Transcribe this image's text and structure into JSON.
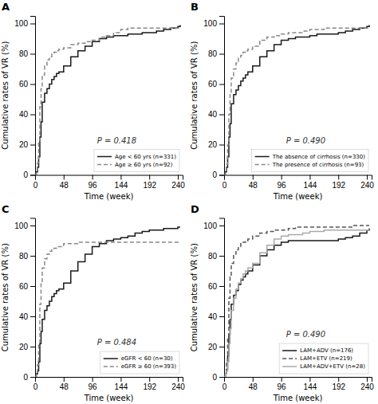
{
  "chart_data": [
    {
      "type": "step",
      "title": "A",
      "annotations": [
        "P = 0.418"
      ],
      "xlabel": "Time (week)",
      "ylabel": "Cumulative rates of VR (%)",
      "xlim": [
        0,
        248
      ],
      "ylim": [
        0,
        105
      ],
      "xticks": [
        0,
        48,
        96,
        144,
        192,
        240
      ],
      "yticks": [
        0,
        20,
        40,
        60,
        80,
        100
      ],
      "grid": false,
      "legend": "lower right",
      "series": [
        {
          "name": "Age < 60 yrs (n=331)",
          "color": "#1a1a1a",
          "line_style": "solid",
          "x": [
            0,
            2,
            4,
            6,
            8,
            10,
            12,
            16,
            20,
            24,
            28,
            32,
            36,
            40,
            48,
            60,
            72,
            84,
            96,
            108,
            120,
            132,
            144,
            156,
            168,
            180,
            192,
            204,
            216,
            228,
            240,
            244
          ],
          "values": [
            0,
            2,
            5,
            12,
            25,
            35,
            48,
            54,
            57,
            60,
            63,
            65,
            67,
            68,
            72,
            78,
            82,
            85,
            88,
            90,
            91,
            92,
            92,
            93,
            93,
            94,
            94,
            95,
            96,
            97,
            98,
            99
          ]
        },
        {
          "name": "Age ≥ 60 yrs (n=92)",
          "color": "#888888",
          "line_style": "dashed",
          "x": [
            0,
            2,
            4,
            6,
            8,
            10,
            12,
            16,
            20,
            24,
            28,
            32,
            36,
            40,
            48,
            60,
            72,
            84,
            96,
            108,
            120,
            132,
            144,
            156,
            168,
            180,
            192,
            204,
            240,
            244
          ],
          "values": [
            0,
            3,
            8,
            22,
            45,
            57,
            66,
            72,
            76,
            78,
            80,
            81,
            82,
            83,
            84,
            86,
            87,
            88,
            89,
            91,
            92,
            94,
            96,
            97,
            97,
            97,
            97,
            97,
            97,
            97
          ]
        }
      ]
    },
    {
      "type": "step",
      "title": "B",
      "annotations": [
        "P = 0.490"
      ],
      "xlabel": "Time (week)",
      "ylabel": "Cumulative rates of VR (%)",
      "xlim": [
        0,
        248
      ],
      "ylim": [
        0,
        105
      ],
      "xticks": [
        0,
        48,
        96,
        144,
        192,
        240
      ],
      "yticks": [
        0,
        20,
        40,
        60,
        80,
        100
      ],
      "grid": false,
      "legend": "lower right",
      "series": [
        {
          "name": "The absence of cirrhosis (n=330)",
          "color": "#1a1a1a",
          "line_style": "solid",
          "x": [
            0,
            2,
            4,
            6,
            8,
            10,
            12,
            16,
            20,
            24,
            28,
            32,
            36,
            40,
            48,
            60,
            72,
            84,
            96,
            108,
            120,
            132,
            144,
            156,
            168,
            180,
            192,
            204,
            216,
            228,
            240,
            244
          ],
          "values": [
            0,
            2,
            5,
            12,
            25,
            34,
            47,
            53,
            56,
            59,
            62,
            64,
            66,
            68,
            72,
            78,
            82,
            86,
            89,
            90,
            91,
            91,
            92,
            93,
            93,
            93,
            94,
            95,
            96,
            97,
            98,
            99
          ]
        },
        {
          "name": "The presence of cirrhosis (n=93)",
          "color": "#888888",
          "line_style": "dashed",
          "x": [
            0,
            2,
            4,
            6,
            8,
            10,
            12,
            16,
            20,
            24,
            28,
            32,
            36,
            40,
            48,
            60,
            72,
            84,
            96,
            108,
            120,
            132,
            144,
            156,
            168,
            180,
            192,
            204,
            216,
            228,
            240,
            244
          ],
          "values": [
            0,
            3,
            7,
            20,
            40,
            54,
            64,
            70,
            74,
            77,
            79,
            81,
            82,
            83,
            85,
            89,
            91,
            92,
            93,
            94,
            94,
            95,
            96,
            96,
            97,
            97,
            97,
            97,
            97,
            97,
            97,
            97
          ]
        }
      ]
    },
    {
      "type": "step",
      "title": "C",
      "annotations": [
        "P = 0.484"
      ],
      "xlabel": "Time (week)",
      "ylabel": "Cumulative rates of VR (%)",
      "xlim": [
        0,
        248
      ],
      "ylim": [
        0,
        105
      ],
      "xticks": [
        0,
        48,
        96,
        144,
        192,
        240
      ],
      "yticks": [
        0,
        20,
        40,
        60,
        80,
        100
      ],
      "grid": false,
      "legend": "lower right",
      "series": [
        {
          "name": "eGFR < 60 (n=30)",
          "color": "#1a1a1a",
          "line_style": "solid",
          "x": [
            0,
            2,
            4,
            6,
            8,
            10,
            12,
            16,
            20,
            24,
            28,
            32,
            36,
            40,
            48,
            60,
            72,
            84,
            96,
            108,
            120,
            132,
            144,
            156,
            168,
            180,
            192,
            204,
            216,
            228,
            240,
            244
          ],
          "values": [
            0,
            2,
            4,
            10,
            22,
            30,
            38,
            44,
            47,
            50,
            53,
            55,
            57,
            58,
            62,
            70,
            76,
            81,
            86,
            88,
            90,
            91,
            92,
            93,
            95,
            96,
            97,
            97,
            98,
            98,
            99,
            99
          ]
        },
        {
          "name": "eGFR ≥ 60 (n=393)",
          "color": "#888888",
          "line_style": "dashed",
          "x": [
            0,
            2,
            4,
            6,
            8,
            10,
            12,
            16,
            20,
            24,
            28,
            32,
            36,
            40,
            48,
            60,
            72,
            84,
            96,
            108,
            120,
            132,
            144,
            240,
            244
          ],
          "values": [
            0,
            3,
            8,
            22,
            48,
            62,
            72,
            78,
            81,
            83,
            84,
            85,
            86,
            86,
            88,
            88,
            89,
            89,
            89,
            89,
            89,
            89,
            89,
            89,
            89
          ]
        }
      ]
    },
    {
      "type": "step",
      "title": "D",
      "annotations": [
        "P = 0.490"
      ],
      "xlabel": "Time (week)",
      "ylabel": "Cumulative rates of VR (%)",
      "xlim": [
        0,
        248
      ],
      "ylim": [
        0,
        105
      ],
      "xticks": [
        0,
        48,
        96,
        144,
        192,
        240
      ],
      "yticks": [
        0,
        20,
        40,
        60,
        80,
        100
      ],
      "grid": false,
      "legend": "lower right",
      "series": [
        {
          "name": "LAM+ADV (n=176)",
          "color": "#1a1a1a",
          "line_style": "solid",
          "x": [
            0,
            2,
            4,
            6,
            8,
            10,
            12,
            16,
            20,
            24,
            28,
            32,
            36,
            40,
            48,
            60,
            72,
            84,
            96,
            108,
            120,
            132,
            144,
            156,
            168,
            180,
            192,
            204,
            216,
            228,
            240,
            244
          ],
          "values": [
            0,
            2,
            5,
            14,
            28,
            38,
            48,
            54,
            57,
            61,
            64,
            66,
            68,
            70,
            74,
            80,
            84,
            87,
            89,
            90,
            90,
            90,
            90,
            90,
            90,
            90,
            91,
            92,
            93,
            95,
            97,
            98
          ]
        },
        {
          "name": "LAM+ETV (n=219)",
          "color": "#555555",
          "line_style": "dashed",
          "x": [
            0,
            2,
            4,
            6,
            8,
            10,
            12,
            16,
            20,
            24,
            28,
            32,
            36,
            40,
            48,
            60,
            72,
            84,
            96,
            108,
            120,
            132,
            144,
            156,
            168,
            180,
            192,
            204,
            216,
            228,
            240,
            244
          ],
          "values": [
            0,
            3,
            9,
            25,
            52,
            66,
            75,
            81,
            84,
            86,
            88,
            89,
            90,
            91,
            93,
            95,
            96,
            97,
            97,
            98,
            99,
            99,
            99,
            99,
            99,
            99,
            99,
            99,
            100,
            100,
            100,
            100
          ]
        },
        {
          "name": "LAM+ADV+ETV (n=28)",
          "color": "#aaaaaa",
          "line_style": "solid",
          "x": [
            0,
            2,
            4,
            6,
            8,
            10,
            12,
            16,
            20,
            24,
            28,
            32,
            36,
            40,
            48,
            60,
            72,
            84,
            96,
            108,
            120,
            132,
            144,
            156,
            168,
            180,
            192,
            204,
            216,
            228,
            240,
            244
          ],
          "values": [
            0,
            2,
            4,
            10,
            22,
            32,
            44,
            52,
            58,
            62,
            65,
            68,
            70,
            72,
            75,
            82,
            87,
            91,
            93,
            94,
            94,
            95,
            96,
            96,
            97,
            97,
            97,
            97,
            97,
            97,
            97,
            97
          ]
        }
      ]
    }
  ]
}
